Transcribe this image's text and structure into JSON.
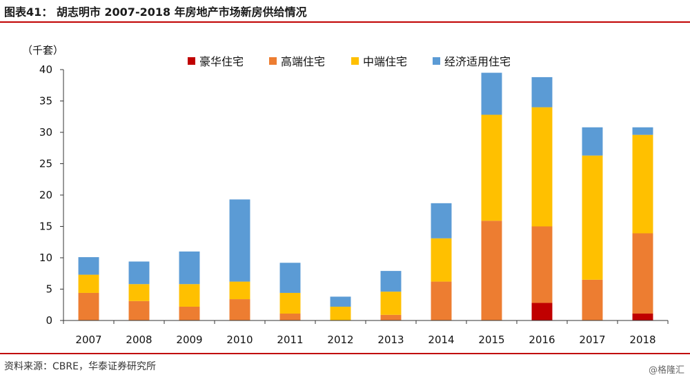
{
  "header": {
    "title": "图表41：  胡志明市 2007-2018 年房地产市场新房供给情况"
  },
  "footer": {
    "source": "资料来源：CBRE，华泰证券研究所",
    "watermark": "@格隆汇"
  },
  "colors": {
    "accent_rule": "#c00000"
  },
  "chart_data": {
    "type": "bar",
    "stacked": true,
    "ylabel": "（千套）",
    "ylim": [
      0,
      40
    ],
    "yticks": [
      0,
      5,
      10,
      15,
      20,
      25,
      30,
      35,
      40
    ],
    "grid": false,
    "legend_position": "top",
    "categories": [
      "2007",
      "2008",
      "2009",
      "2010",
      "2011",
      "2012",
      "2013",
      "2014",
      "2015",
      "2016",
      "2017",
      "2018"
    ],
    "series": [
      {
        "name": "豪华住宅",
        "color": "#c00000",
        "values": [
          0,
          0,
          0,
          0,
          0,
          0,
          0,
          0,
          0,
          2.8,
          0,
          1.1
        ]
      },
      {
        "name": "高端住宅",
        "color": "#ed7d31",
        "values": [
          4.4,
          3.1,
          2.2,
          3.4,
          1.1,
          0,
          0.9,
          6.2,
          15.9,
          12.2,
          6.5,
          12.8
        ]
      },
      {
        "name": "中端住宅",
        "color": "#ffc000",
        "values": [
          2.9,
          2.7,
          3.6,
          2.8,
          3.3,
          2.2,
          3.7,
          6.9,
          16.9,
          19.0,
          19.8,
          15.7
        ]
      },
      {
        "name": "经济适用住宅",
        "color": "#5b9bd5",
        "values": [
          2.8,
          3.6,
          5.2,
          13.1,
          4.8,
          1.6,
          3.3,
          5.6,
          6.7,
          4.8,
          4.5,
          1.2
        ]
      }
    ]
  }
}
